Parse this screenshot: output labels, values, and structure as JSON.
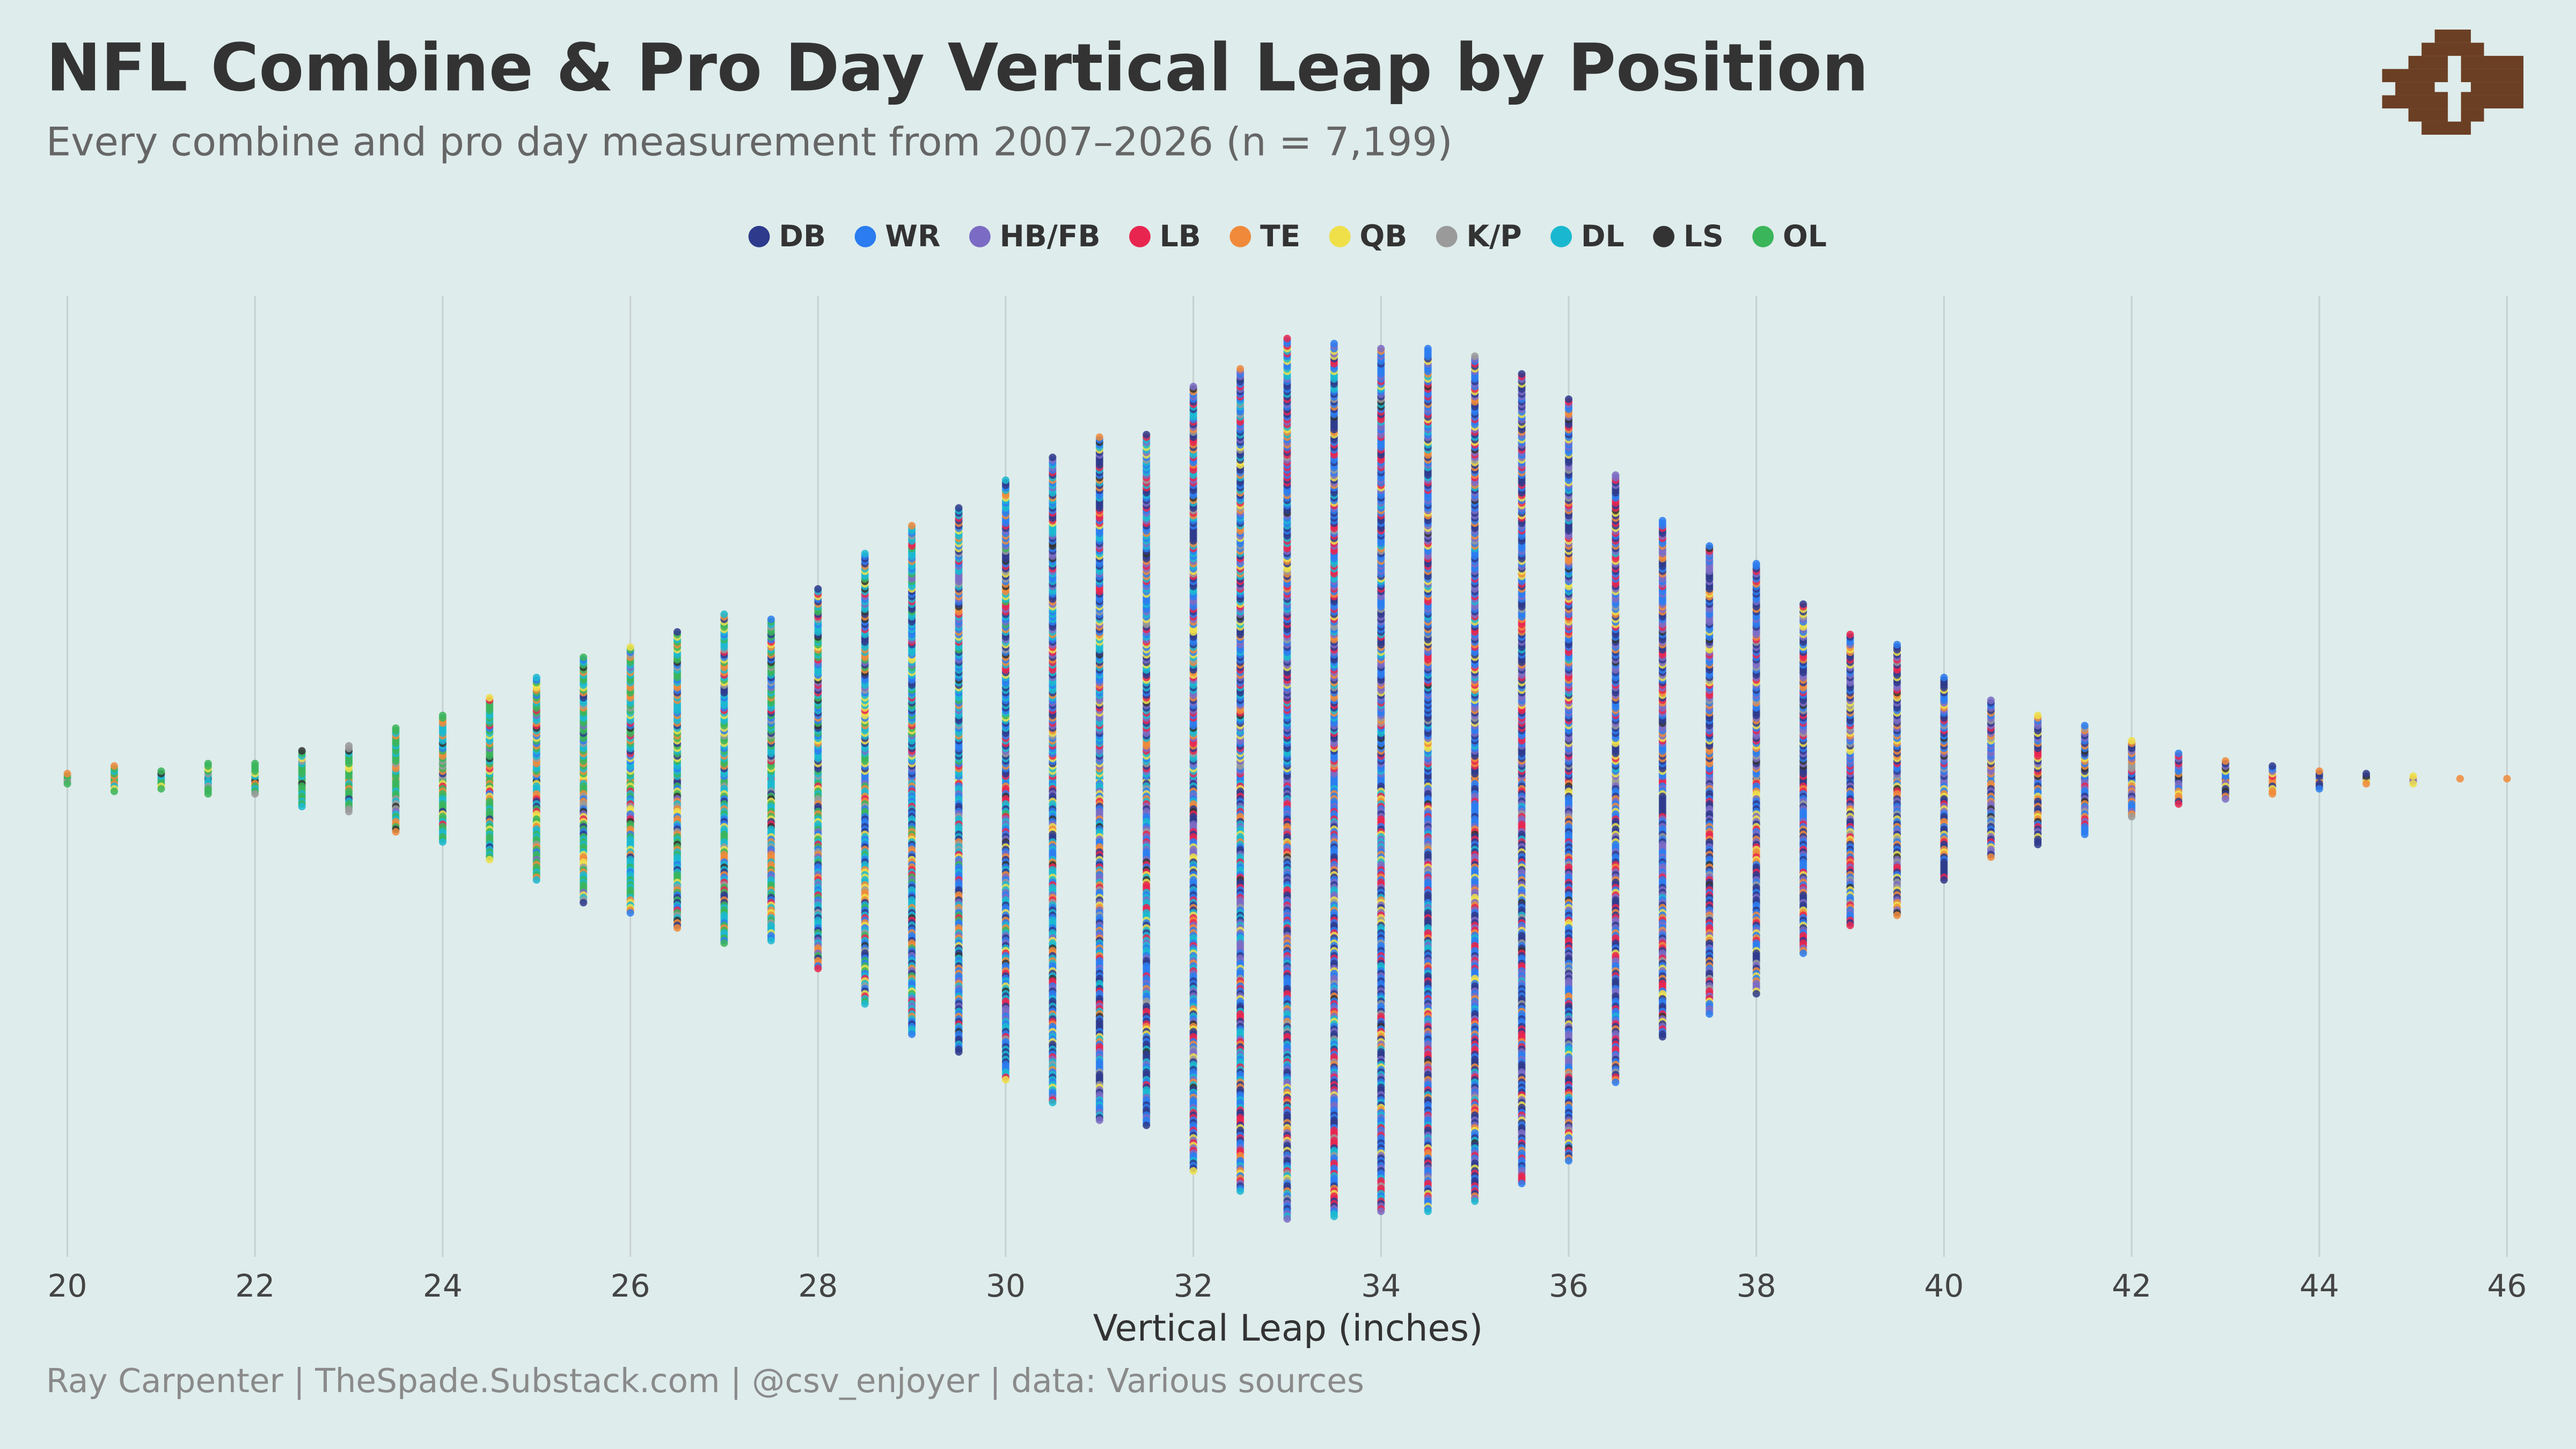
{
  "chart_data": {
    "type": "beeswarm",
    "title": "NFL Combine & Pro Day Vertical Leap by Position",
    "subtitle": "Every combine and pro day measurement from 2007–2026 (n = 7,199)",
    "x_label": "Vertical Leap (inches)",
    "caption": "Ray Carpenter | TheSpade.Substack.com | @csv_enjoyer | data: Various sources",
    "series": [
      {
        "name": "DB",
        "color": "#2e3a8c"
      },
      {
        "name": "WR",
        "color": "#2a7cf0"
      },
      {
        "name": "HB/FB",
        "color": "#7b6bc4"
      },
      {
        "name": "LB",
        "color": "#e8254f"
      },
      {
        "name": "TE",
        "color": "#f08a3a"
      },
      {
        "name": "QB",
        "color": "#efe04a"
      },
      {
        "name": "K/P",
        "color": "#9a9a9a"
      },
      {
        "name": "DL",
        "color": "#1ab8d0"
      },
      {
        "name": "LS",
        "color": "#333333"
      },
      {
        "name": "OL",
        "color": "#3ab55a"
      }
    ],
    "x": [
      20,
      20.5,
      21,
      21.5,
      22,
      22.5,
      23,
      23.5,
      24,
      24.5,
      25,
      25.5,
      26,
      26.5,
      27,
      27.5,
      28,
      28.5,
      29,
      29.5,
      30,
      30.5,
      31,
      31.5,
      32,
      32.5,
      33,
      33.5,
      34,
      34.5,
      35,
      35.5,
      36,
      36.5,
      37,
      37.5,
      38,
      38.5,
      39,
      39.5,
      40,
      40.5,
      41,
      41.5,
      42,
      42.5,
      43,
      43.5,
      44,
      44.5,
      45,
      45.5,
      46
    ],
    "counts": [
      5,
      11,
      8,
      13,
      13,
      23,
      27,
      42,
      51,
      65,
      81,
      98,
      106,
      118,
      131,
      128,
      151,
      179,
      202,
      216,
      238,
      256,
      271,
      274,
      311,
      326,
      349,
      346,
      342,
      342,
      335,
      321,
      302,
      241,
      205,
      186,
      171,
      139,
      116,
      108,
      81,
      63,
      52,
      44,
      31,
      21,
      16,
      12,
      8,
      5,
      4,
      1,
      1
    ],
    "xlim": [
      20,
      46
    ],
    "xticks": [
      20,
      22,
      24,
      26,
      28,
      30,
      32,
      34,
      36,
      38,
      40,
      42,
      44,
      46
    ],
    "grid": true
  }
}
